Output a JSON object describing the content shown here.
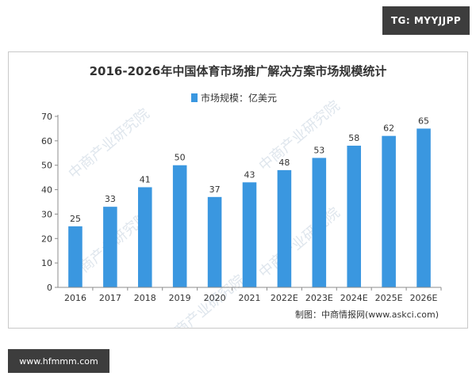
{
  "badges": {
    "top": "TG: MYYJJPP",
    "bottom": "www.hfmmm.com"
  },
  "watermark_text": "中商产业研究院",
  "source_note": "制图：中商情报网(www.askci.com)",
  "colors": {
    "bar": "#3a97e0",
    "axis": "#8c8c8c",
    "text": "#333333",
    "watermark": "#dfe6ed"
  },
  "chart_data": {
    "type": "bar",
    "title": "2016-2026年中国体育市场推广解决方案市场规模统计",
    "legend": "top-center",
    "series": [
      {
        "name": "市场规模：亿美元",
        "values": [
          25,
          33,
          41,
          50,
          37,
          43,
          48,
          53,
          58,
          62,
          65
        ]
      }
    ],
    "categories": [
      "2016",
      "2017",
      "2018",
      "2019",
      "2020",
      "2021",
      "2022E",
      "2023E",
      "2024E",
      "2025E",
      "2026E"
    ],
    "data_labels": [
      "25",
      "33",
      "41",
      "50",
      "37",
      "43",
      "48",
      "53",
      "58",
      "62",
      "65"
    ],
    "yticks": [
      0,
      10,
      20,
      30,
      40,
      50,
      60,
      70
    ],
    "ylim": [
      0,
      70
    ],
    "xlabel": "",
    "ylabel": "",
    "grid": false
  }
}
